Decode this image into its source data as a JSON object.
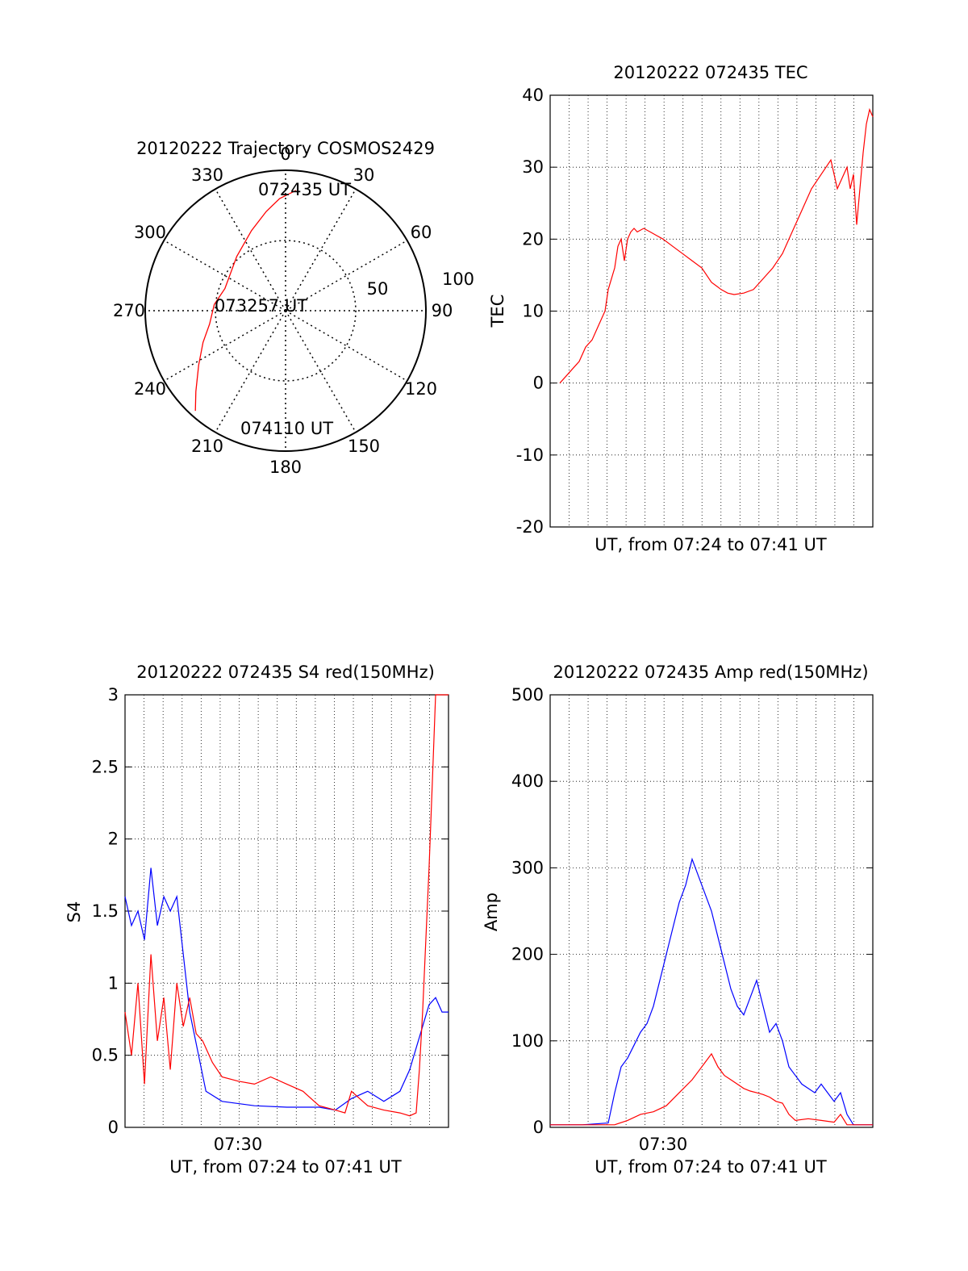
{
  "colors": {
    "red": "#ff0000",
    "blue": "#0000ff",
    "grid": "#000000",
    "background": "#ffffff"
  },
  "chart_data": [
    {
      "id": "trajectory",
      "type": "polar",
      "title": "20120222 Trajectory COSMOS2429",
      "angle_labels": [
        "0",
        "30",
        "60",
        "90",
        "120",
        "150",
        "180",
        "210",
        "240",
        "270",
        "300",
        "330"
      ],
      "radius_labels": [
        "50",
        "100"
      ],
      "series": [
        {
          "color": "red",
          "points": [
            {
              "az": 5,
              "r": 86
            },
            {
              "az": 357,
              "r": 80
            },
            {
              "az": 349,
              "r": 72
            },
            {
              "az": 337,
              "r": 62
            },
            {
              "az": 318,
              "r": 52
            },
            {
              "az": 290,
              "r": 46
            },
            {
              "az": 275,
              "r": 51
            },
            {
              "az": 260,
              "r": 55
            },
            {
              "az": 249,
              "r": 63
            },
            {
              "az": 238,
              "r": 73
            },
            {
              "az": 228,
              "r": 86
            },
            {
              "az": 222,
              "r": 96
            }
          ]
        }
      ],
      "annotations": [
        "072435 UT",
        "073257 UT",
        "074110 UT"
      ]
    },
    {
      "id": "tec",
      "type": "line",
      "title": "20120222 072435 TEC",
      "xlabel": "UT, from 07:24 to 07:41 UT",
      "ylabel": "TEC",
      "xlim": [
        0,
        100
      ],
      "ylim": [
        -20,
        40
      ],
      "yticks": [
        "40",
        "30",
        "20",
        "10",
        "0",
        "-10",
        "-20"
      ],
      "series": [
        {
          "color": "red",
          "x": [
            3,
            5,
            7,
            9,
            11,
            13,
            15,
            17,
            18,
            20,
            21,
            22,
            23,
            24,
            25,
            26,
            27,
            29,
            31,
            33,
            35,
            38,
            41,
            44,
            47,
            50,
            53,
            55,
            57,
            60,
            63,
            66,
            69,
            72,
            75,
            78,
            81,
            84,
            87,
            89,
            91,
            92,
            93,
            94,
            95,
            96,
            97,
            98,
            99,
            100
          ],
          "y": [
            0,
            1,
            2,
            3,
            5,
            6,
            8,
            10,
            13,
            16,
            19,
            20,
            17,
            20,
            21,
            21.5,
            21,
            21.5,
            21,
            20.5,
            20,
            19,
            18,
            17,
            16,
            14,
            13,
            12.5,
            12.3,
            12.5,
            13,
            14.5,
            16,
            18,
            21,
            24,
            27,
            29,
            31,
            27,
            29,
            30,
            27,
            29,
            22,
            27,
            32,
            36,
            38,
            37
          ]
        }
      ]
    },
    {
      "id": "s4",
      "type": "line",
      "title": "20120222 072435 S4 red(150MHz)",
      "xlabel": "UT, from 07:24 to 07:41 UT",
      "ylabel": "S4",
      "xlim": [
        0,
        100
      ],
      "ylim": [
        0,
        3
      ],
      "yticks": [
        "3",
        "2.5",
        "2",
        "1.5",
        "1",
        "0.5",
        "0"
      ],
      "xtick_label": "07:30",
      "series": [
        {
          "color": "blue",
          "x": [
            0,
            2,
            4,
            6,
            8,
            10,
            12,
            14,
            16,
            18,
            20,
            25,
            30,
            40,
            50,
            60,
            65,
            70,
            75,
            80,
            85,
            88,
            90,
            92,
            94,
            96,
            98,
            100
          ],
          "y": [
            1.6,
            1.4,
            1.5,
            1.3,
            1.8,
            1.4,
            1.6,
            1.5,
            1.6,
            1.2,
            0.8,
            0.25,
            0.18,
            0.15,
            0.14,
            0.14,
            0.12,
            0.2,
            0.25,
            0.18,
            0.25,
            0.4,
            0.55,
            0.7,
            0.85,
            0.9,
            0.8,
            0.8
          ]
        },
        {
          "color": "red",
          "x": [
            0,
            2,
            4,
            6,
            8,
            10,
            12,
            14,
            16,
            18,
            20,
            22,
            24,
            27,
            30,
            35,
            40,
            45,
            50,
            55,
            60,
            65,
            68,
            70,
            75,
            80,
            85,
            88,
            90,
            91,
            92,
            93,
            94,
            95,
            96,
            98,
            100
          ],
          "y": [
            0.8,
            0.5,
            1.0,
            0.3,
            1.2,
            0.6,
            0.9,
            0.4,
            1.0,
            0.7,
            0.9,
            0.65,
            0.6,
            0.45,
            0.35,
            0.32,
            0.3,
            0.35,
            0.3,
            0.25,
            0.15,
            0.12,
            0.1,
            0.25,
            0.15,
            0.12,
            0.1,
            0.08,
            0.1,
            0.4,
            0.8,
            1.3,
            1.8,
            2.4,
            3.0,
            3.0,
            3.0
          ]
        }
      ]
    },
    {
      "id": "amp",
      "type": "line",
      "title": "20120222 072435 Amp red(150MHz)",
      "xlabel": "UT, from 07:24 to 07:41 UT",
      "ylabel": "Amp",
      "xlim": [
        0,
        100
      ],
      "ylim": [
        0,
        500
      ],
      "yticks": [
        "500",
        "400",
        "300",
        "200",
        "100",
        "0"
      ],
      "xtick_label": "07:30",
      "series": [
        {
          "color": "blue",
          "x": [
            0,
            10,
            18,
            20,
            22,
            24,
            26,
            28,
            30,
            32,
            34,
            36,
            38,
            40,
            42,
            44,
            46,
            48,
            50,
            52,
            54,
            56,
            58,
            60,
            62,
            64,
            66,
            68,
            70,
            72,
            74,
            76,
            78,
            80,
            82,
            84,
            86,
            88,
            90,
            92,
            94,
            96,
            98,
            100
          ],
          "y": [
            3,
            3,
            5,
            40,
            70,
            80,
            95,
            110,
            120,
            140,
            170,
            200,
            230,
            260,
            280,
            310,
            290,
            270,
            250,
            220,
            190,
            160,
            140,
            130,
            150,
            170,
            140,
            110,
            120,
            100,
            70,
            60,
            50,
            45,
            40,
            50,
            40,
            30,
            40,
            15,
            3,
            3,
            3,
            3
          ]
        },
        {
          "color": "red",
          "x": [
            0,
            20,
            24,
            28,
            32,
            36,
            40,
            44,
            46,
            48,
            50,
            52,
            54,
            56,
            58,
            60,
            62,
            64,
            66,
            68,
            70,
            72,
            74,
            76,
            80,
            84,
            88,
            90,
            92,
            100
          ],
          "y": [
            3,
            3,
            8,
            15,
            18,
            25,
            40,
            55,
            65,
            75,
            85,
            70,
            60,
            55,
            50,
            45,
            42,
            40,
            38,
            35,
            30,
            28,
            15,
            8,
            10,
            8,
            6,
            15,
            3,
            3
          ]
        }
      ]
    }
  ]
}
